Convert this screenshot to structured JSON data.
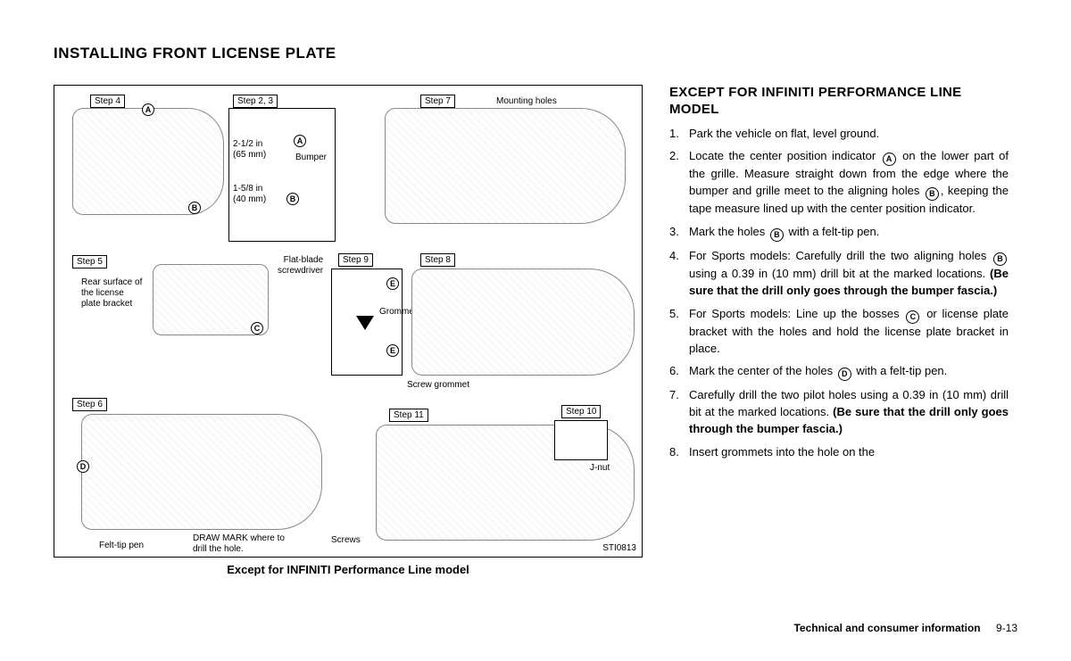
{
  "page_title": "INSTALLING FRONT LICENSE PLATE",
  "figure": {
    "caption": "Except for INFINITI Performance Line model",
    "code": "STI0813",
    "steps": {
      "s4": "Step 4",
      "s23": "Step 2, 3",
      "s7": "Step 7",
      "s5": "Step 5",
      "s9": "Step 9",
      "s8": "Step 8",
      "s6": "Step 6",
      "s11": "Step 11",
      "s10": "Step 10"
    },
    "callouts": {
      "mounting_holes": "Mounting holes",
      "m1": "2-1/2 in",
      "m1s": "(65 mm)",
      "m2": "1-5/8 in",
      "m2s": "(40 mm)",
      "bumper": "Bumper",
      "rear_surface": "Rear surface of\nthe license\nplate bracket",
      "flat_blade": "Flat-blade\nscrewdriver",
      "grommet": "Grommet",
      "screw_grommet": "Screw grommet",
      "felt_tip": "Felt-tip pen",
      "draw_mark": "DRAW MARK where to\ndrill the hole.",
      "screws": "Screws",
      "jnut": "J-nut"
    },
    "letters": {
      "A": "A",
      "B": "B",
      "C": "C",
      "D": "D",
      "E": "E"
    }
  },
  "section_title": "EXCEPT FOR INFINITI PERFORMANCE LINE MODEL",
  "steps": [
    {
      "pre": "Park the vehicle on flat, level ground."
    },
    {
      "pre": "Locate the center position indicator ",
      "c1": "A",
      "mid1": " on the lower part of the grille. Measure straight down from the edge where the bumper and grille meet to the aligning holes ",
      "c2": "B",
      "mid2": ", keeping the tape measure lined up with the center position indicator."
    },
    {
      "pre": "Mark the holes ",
      "c1": "B",
      "mid1": " with a felt-tip pen."
    },
    {
      "pre": "For Sports models: Carefully drill the two aligning holes ",
      "c1": "B",
      "mid1": " using a 0.39 in (10 mm) drill bit at the marked locations. ",
      "bold": "(Be sure that the drill only goes through the bumper fascia.)"
    },
    {
      "pre": "For Sports models: Line up the bosses ",
      "c1": "C",
      "mid1": " or license plate bracket with the holes and hold the license plate bracket in place."
    },
    {
      "pre": "Mark the center of the holes ",
      "c1": "D",
      "mid1": " with a felt-tip pen."
    },
    {
      "pre": "Carefully drill the two pilot holes using a 0.39 in (10 mm) drill bit at the marked locations. ",
      "bold": "(Be sure that the drill only goes through the bumper fascia.)"
    },
    {
      "pre": "Insert grommets into the hole on the"
    }
  ],
  "footer": {
    "section": "Technical and consumer information",
    "page": "9-13"
  }
}
